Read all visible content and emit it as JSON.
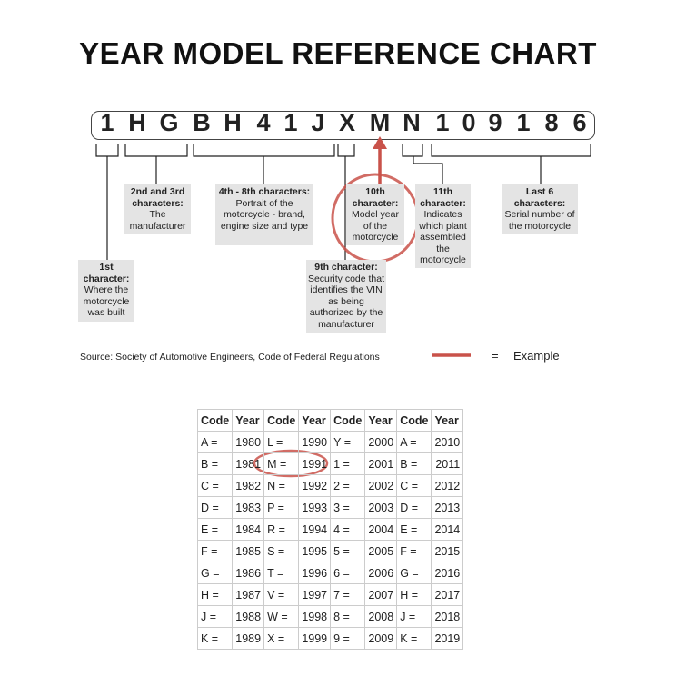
{
  "title": "YEAR MODEL REFERENCE CHART",
  "vin": [
    "1",
    "H",
    "G",
    "B",
    "H",
    "4",
    "1",
    "J",
    "X",
    "M",
    "N",
    "1",
    "0",
    "9",
    "1",
    "8",
    "6"
  ],
  "labels": {
    "first": {
      "heading": "1st character:",
      "text": "Where the motorcycle was built"
    },
    "second_third": {
      "heading": "2nd and 3rd characters:",
      "text": "The manufacturer"
    },
    "fourth_eighth": {
      "heading": "4th - 8th characters:",
      "text": "Portrait of the motorcycle - brand, engine size and type"
    },
    "ninth": {
      "heading": "9th character:",
      "text": "Security code that identifies the VIN as being authorized by the manufacturer"
    },
    "tenth": {
      "heading": "10th character:",
      "text": "Model year of the motorcycle"
    },
    "eleventh": {
      "heading": "11th character:",
      "text": "Indicates which plant assembled the motorcycle"
    },
    "last_six": {
      "heading": "Last 6 characters:",
      "text": "Serial number of the motorcycle"
    }
  },
  "source": "Source:  Society of Automotive Engineers, Code of Federal Regulations",
  "legend": {
    "equals": "=",
    "label": "Example",
    "color": "#c9524a"
  },
  "table": {
    "headers": [
      "Code",
      "Year",
      "Code",
      "Year",
      "Code",
      "Year",
      "Code",
      "Year"
    ],
    "rows": [
      [
        "A =",
        "1980",
        "L =",
        "1990",
        "Y =",
        "2000",
        "A =",
        "2010"
      ],
      [
        "B =",
        "1981",
        "M =",
        "1991",
        "1 =",
        "2001",
        "B =",
        "2011"
      ],
      [
        "C =",
        "1982",
        "N =",
        "1992",
        "2 =",
        "2002",
        "C =",
        "2012"
      ],
      [
        "D =",
        "1983",
        "P =",
        "1993",
        "3 =",
        "2003",
        "D =",
        "2013"
      ],
      [
        "E =",
        "1984",
        "R =",
        "1994",
        "4 =",
        "2004",
        "E =",
        "2014"
      ],
      [
        "F =",
        "1985",
        "S =",
        "1995",
        "5 =",
        "2005",
        "F =",
        "2015"
      ],
      [
        "G =",
        "1986",
        "T =",
        "1996",
        "6 =",
        "2006",
        "G =",
        "2016"
      ],
      [
        "H =",
        "1987",
        "V =",
        "1997",
        "7 =",
        "2007",
        "H =",
        "2017"
      ],
      [
        "J =",
        "1988",
        "W =",
        "1998",
        "8 =",
        "2008",
        "J =",
        "2018"
      ],
      [
        "K =",
        "1989",
        "X =",
        "1999",
        "9 =",
        "2009",
        "K =",
        "2019"
      ]
    ],
    "highlighted": {
      "code": "M =",
      "year": "1991"
    }
  }
}
